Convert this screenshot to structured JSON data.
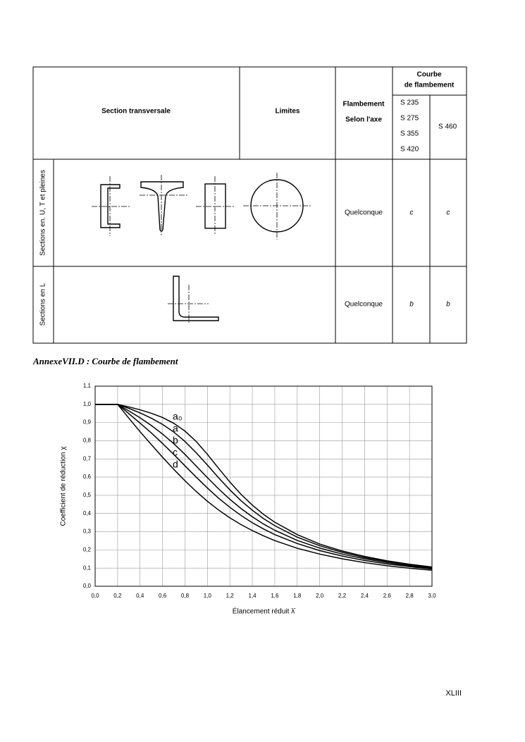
{
  "table": {
    "header": {
      "section": "Section transversale",
      "limits": "Limites",
      "axis": [
        "Flambement",
        "Selon l'axe"
      ],
      "curve": [
        "Courbe",
        "de flambement"
      ],
      "grades_group": [
        "S 235",
        "S 275",
        "S 355",
        "S 420"
      ],
      "grade_high": "S 460"
    },
    "rows": [
      {
        "label": "Sections en. U, T et pleines",
        "axis": "Quelconque",
        "curve_low": "c",
        "curve_high": "c"
      },
      {
        "label": "Sections en L",
        "axis": "Quelconque",
        "curve_low": "b",
        "curve_high": "b"
      }
    ]
  },
  "caption": "AnnexeVII.D : Courbe de flambement",
  "chart_data": {
    "type": "line",
    "xlabel": "Élancement réduit λ̄",
    "ylabel": "Coefficient de réduction χ",
    "x": [
      0,
      0.2,
      0.3,
      0.4,
      0.5,
      0.6,
      0.7,
      0.8,
      0.9,
      1.0,
      1.1,
      1.2,
      1.3,
      1.4,
      1.5,
      1.6,
      1.8,
      2.0,
      2.2,
      2.4,
      2.6,
      2.8,
      3.0
    ],
    "series": [
      {
        "name": "a₀",
        "color": "#000000",
        "values": [
          1,
          1,
          0.986,
          0.97,
          0.951,
          0.928,
          0.896,
          0.853,
          0.796,
          0.725,
          0.648,
          0.573,
          0.505,
          0.446,
          0.395,
          0.352,
          0.284,
          0.232,
          0.194,
          0.164,
          0.14,
          0.121,
          0.106
        ]
      },
      {
        "name": "a",
        "color": "#000000",
        "values": [
          1,
          1,
          0.978,
          0.953,
          0.924,
          0.89,
          0.848,
          0.796,
          0.734,
          0.666,
          0.596,
          0.53,
          0.47,
          0.418,
          0.372,
          0.333,
          0.27,
          0.223,
          0.187,
          0.158,
          0.136,
          0.118,
          0.103
        ]
      },
      {
        "name": "b",
        "color": "#000000",
        "values": [
          1,
          1,
          0.964,
          0.926,
          0.884,
          0.837,
          0.784,
          0.725,
          0.661,
          0.597,
          0.535,
          0.478,
          0.427,
          0.382,
          0.342,
          0.308,
          0.252,
          0.21,
          0.177,
          0.151,
          0.13,
          0.113,
          0.099
        ]
      },
      {
        "name": "c",
        "color": "#000000",
        "values": [
          1,
          1,
          0.949,
          0.897,
          0.843,
          0.785,
          0.725,
          0.662,
          0.6,
          0.54,
          0.484,
          0.434,
          0.389,
          0.349,
          0.315,
          0.284,
          0.235,
          0.196,
          0.166,
          0.142,
          0.123,
          0.108,
          0.095
        ]
      },
      {
        "name": "d",
        "color": "#000000",
        "values": [
          1,
          1,
          0.924,
          0.85,
          0.779,
          0.71,
          0.643,
          0.58,
          0.521,
          0.467,
          0.419,
          0.376,
          0.339,
          0.306,
          0.277,
          0.251,
          0.209,
          0.177,
          0.151,
          0.13,
          0.113,
          0.099,
          0.088
        ]
      }
    ],
    "xlim": [
      0,
      3
    ],
    "ylim": [
      0,
      1.1
    ],
    "xticks": [
      {
        "value": 0,
        "label": "0,0"
      },
      {
        "value": 0.2,
        "label": "0,2"
      },
      {
        "value": 0.4,
        "label": "0,4"
      },
      {
        "value": 0.6,
        "label": "0,6"
      },
      {
        "value": 0.8,
        "label": "0,8"
      },
      {
        "value": 1,
        "label": "1,0"
      },
      {
        "value": 1.2,
        "label": "1,2"
      },
      {
        "value": 1.4,
        "label": "1,4"
      },
      {
        "value": 1.6,
        "label": "1,6"
      },
      {
        "value": 1.8,
        "label": "1,8"
      },
      {
        "value": 2,
        "label": "2,0"
      },
      {
        "value": 2.2,
        "label": "2,2"
      },
      {
        "value": 2.4,
        "label": "2,4"
      },
      {
        "value": 2.6,
        "label": "2,6"
      },
      {
        "value": 2.8,
        "label": "2,8"
      },
      {
        "value": 3,
        "label": "3,0"
      }
    ],
    "yticks": [
      {
        "value": 0,
        "label": "0,0"
      },
      {
        "value": 0.1,
        "label": "0,1"
      },
      {
        "value": 0.2,
        "label": "0,2"
      },
      {
        "value": 0.3,
        "label": "0,3"
      },
      {
        "value": 0.4,
        "label": "0,4"
      },
      {
        "value": 0.5,
        "label": "0,5"
      },
      {
        "value": 0.6,
        "label": "0,6"
      },
      {
        "value": 0.7,
        "label": "0,7"
      },
      {
        "value": 0.8,
        "label": "0,8"
      },
      {
        "value": 0.9,
        "label": "0,9"
      },
      {
        "value": 1,
        "label": "1,0"
      },
      {
        "value": 1.1,
        "label": "1,1"
      }
    ],
    "grid": true
  },
  "page_number": "XLIII"
}
